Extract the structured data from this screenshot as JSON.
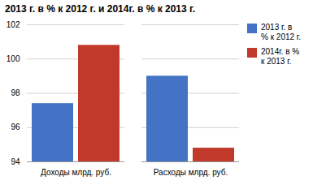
{
  "chart_data": {
    "type": "bar",
    "title": "2013 г. в % к 2012 г. и 2014г. в % к 2013 г.",
    "categories": [
      "Доходы млрд. руб.",
      "Расходы млрд. руб."
    ],
    "series": [
      {
        "name": "2013 г. в\n% к 2012 г.",
        "color": "#4472c4",
        "values": [
          97.4,
          99.0
        ]
      },
      {
        "name": "2014г. в %\nк 2013 г.",
        "color": "#c0392b",
        "values": [
          100.8,
          94.8
        ]
      }
    ],
    "ylim": [
      94,
      102
    ],
    "yticks": [
      94,
      96,
      98,
      100,
      102
    ],
    "grid": true,
    "legend": "upper right"
  }
}
